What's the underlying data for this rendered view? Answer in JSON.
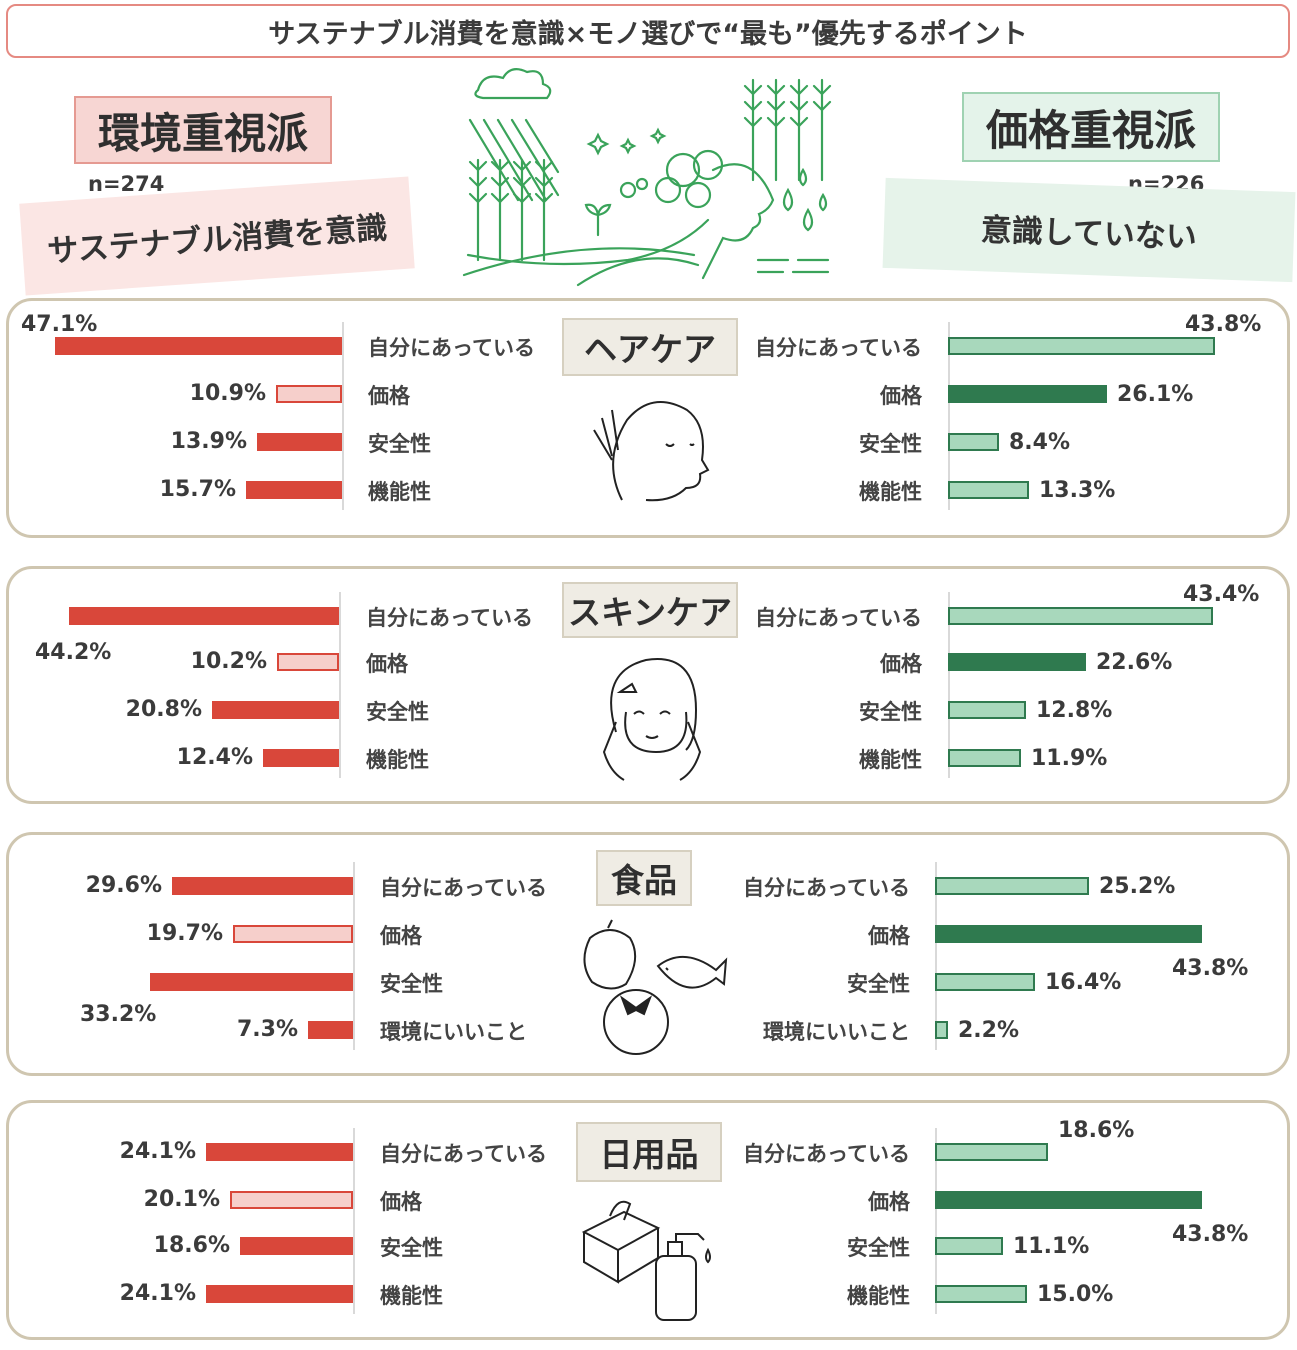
{
  "title": "サステナブル消費を意識×モノ選びで“最も”優先するポイント",
  "groups": {
    "left": {
      "name": "環境重視派",
      "n": "n=274",
      "sub": "サステナブル消費を意識"
    },
    "right": {
      "name": "価格重視派",
      "n": "n=226",
      "sub": "意識していない"
    }
  },
  "colors": {
    "left_main": "#d9473a",
    "left_light": "#f6cfcb",
    "right_light": "#a8d8bc",
    "right_dark": "#2f7a4f",
    "panel_border": "#cfc6b0"
  },
  "chart_data": [
    {
      "type": "bar",
      "title": "ヘアケア",
      "categories": [
        "自分にあっている",
        "価格",
        "安全性",
        "機能性"
      ],
      "series": [
        {
          "name": "環境重視派",
          "values": [
            47.1,
            10.9,
            13.9,
            15.7
          ],
          "labels": [
            "47.1%",
            "10.9%",
            "13.9%",
            "15.7%"
          ]
        },
        {
          "name": "価格重視派",
          "values": [
            43.8,
            26.1,
            8.4,
            13.3
          ],
          "labels": [
            "43.8%",
            "26.1%",
            "8.4%",
            "13.3%"
          ]
        }
      ]
    },
    {
      "type": "bar",
      "title": "スキンケア",
      "categories": [
        "自分にあっている",
        "価格",
        "安全性",
        "機能性"
      ],
      "series": [
        {
          "name": "環境重視派",
          "values": [
            44.2,
            10.2,
            20.8,
            12.4
          ],
          "labels": [
            "44.2%",
            "10.2%",
            "20.8%",
            "12.4%"
          ]
        },
        {
          "name": "価格重視派",
          "values": [
            43.4,
            22.6,
            12.8,
            11.9
          ],
          "labels": [
            "43.4%",
            "22.6%",
            "12.8%",
            "11.9%"
          ]
        }
      ]
    },
    {
      "type": "bar",
      "title": "食品",
      "categories": [
        "自分にあっている",
        "価格",
        "安全性",
        "環境にいいこと"
      ],
      "series": [
        {
          "name": "環境重視派",
          "values": [
            29.6,
            19.7,
            33.2,
            7.3
          ],
          "labels": [
            "29.6%",
            "19.7%",
            "33.2%",
            "7.3%"
          ]
        },
        {
          "name": "価格重視派",
          "values": [
            25.2,
            43.8,
            16.4,
            2.2
          ],
          "labels": [
            "25.2%",
            "43.8%",
            "16.4%",
            "2.2%"
          ]
        }
      ]
    },
    {
      "type": "bar",
      "title": "日用品",
      "categories": [
        "自分にあっている",
        "価格",
        "安全性",
        "機能性"
      ],
      "series": [
        {
          "name": "環境重視派",
          "values": [
            24.1,
            20.1,
            18.6,
            24.1
          ],
          "labels": [
            "24.1%",
            "20.1%",
            "18.6%",
            "24.1%"
          ]
        },
        {
          "name": "価格重視派",
          "values": [
            18.6,
            43.8,
            11.1,
            15.0
          ],
          "labels": [
            "18.6%",
            "43.8%",
            "11.1%",
            "15.0%"
          ]
        }
      ]
    }
  ]
}
